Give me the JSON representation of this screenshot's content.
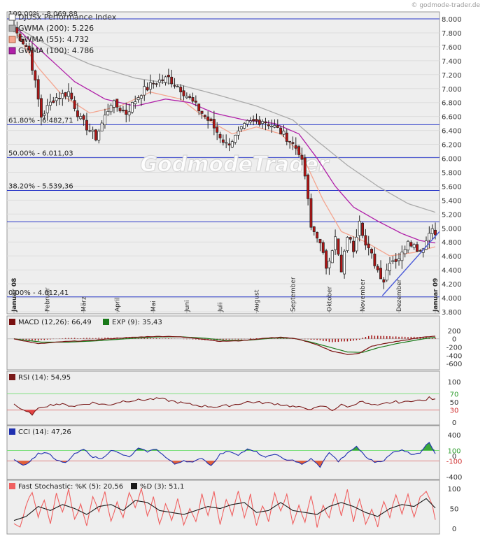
{
  "watermark": "© godmode-trader.de",
  "logo_text": "GodmodeTrader",
  "chart_data": [
    {
      "type": "candlestick",
      "title": "DJUSx Performance Index",
      "top_label": "100.00% - 8.069,88",
      "ylim": [
        4.0,
        8.0
      ],
      "yticks": [
        "3.800",
        "4.000",
        "4.200",
        "4.400",
        "4.600",
        "4.800",
        "5.000",
        "5.200",
        "5.400",
        "5.600",
        "5.800",
        "6.000",
        "6.200",
        "6.400",
        "6.600",
        "6.800",
        "7.000",
        "7.200",
        "7.400",
        "7.600",
        "7.800",
        "8.000"
      ],
      "months": [
        "Januar 08",
        "Februar",
        "März",
        "April",
        "Mai",
        "Juni",
        "Juli",
        "August",
        "September",
        "Oktober",
        "November",
        "Dezember",
        "Januar 09"
      ],
      "legend": [
        {
          "label": "GWMA (200): 5.226",
          "color": "#aaaaaa"
        },
        {
          "label": "GWMA (55): 4.732",
          "color": "#f4a58f"
        },
        {
          "label": "GWMA (100): 4.786",
          "color": "#b01fa8"
        }
      ],
      "fibonacci": [
        {
          "label": "61.80% - 6.482,71",
          "value": 6.48271
        },
        {
          "label": "50.00% - 6.011,03",
          "value": 6.01103
        },
        {
          "label": "38.20% - 5.539,36",
          "value": 5.53936
        },
        {
          "label": "0.00% - 4.012,41",
          "value": 4.01241
        }
      ],
      "extra_levels": [
        8.0,
        5.09
      ],
      "close_keypoints": [
        [
          0,
          7.85
        ],
        [
          5,
          7.55
        ],
        [
          9,
          6.6
        ],
        [
          13,
          6.85
        ],
        [
          18,
          6.95
        ],
        [
          22,
          6.55
        ],
        [
          27,
          6.3
        ],
        [
          32,
          6.8
        ],
        [
          37,
          6.65
        ],
        [
          42,
          6.95
        ],
        [
          47,
          7.1
        ],
        [
          51,
          7.15
        ],
        [
          55,
          7.0
        ],
        [
          60,
          6.75
        ],
        [
          65,
          6.5
        ],
        [
          70,
          6.2
        ],
        [
          73,
          6.3
        ],
        [
          77,
          6.5
        ],
        [
          82,
          6.55
        ],
        [
          86,
          6.45
        ],
        [
          90,
          6.3
        ],
        [
          94,
          6.1
        ],
        [
          96,
          5.75
        ],
        [
          98,
          5.0
        ],
        [
          100,
          4.9
        ],
        [
          103,
          4.45
        ],
        [
          106,
          4.85
        ],
        [
          108,
          4.35
        ],
        [
          110,
          4.9
        ],
        [
          112,
          4.7
        ],
        [
          114,
          5.15
        ],
        [
          116,
          4.75
        ],
        [
          118,
          4.6
        ],
        [
          120,
          4.4
        ],
        [
          122,
          4.25
        ],
        [
          124,
          4.55
        ],
        [
          126,
          4.55
        ],
        [
          128,
          4.62
        ],
        [
          130,
          4.85
        ],
        [
          132,
          4.75
        ],
        [
          134,
          4.68
        ],
        [
          136,
          4.82
        ],
        [
          138,
          5.05
        ],
        [
          139,
          4.87
        ]
      ],
      "gwma200_keypoints": [
        [
          0,
          7.9
        ],
        [
          12,
          7.6
        ],
        [
          25,
          7.35
        ],
        [
          40,
          7.15
        ],
        [
          55,
          7.05
        ],
        [
          68,
          6.9
        ],
        [
          80,
          6.75
        ],
        [
          92,
          6.55
        ],
        [
          100,
          6.25
        ],
        [
          110,
          5.9
        ],
        [
          120,
          5.6
        ],
        [
          130,
          5.35
        ],
        [
          139,
          5.226
        ]
      ],
      "gwma55_keypoints": [
        [
          0,
          7.85
        ],
        [
          8,
          7.3
        ],
        [
          16,
          6.9
        ],
        [
          25,
          6.65
        ],
        [
          35,
          6.75
        ],
        [
          45,
          6.95
        ],
        [
          55,
          6.85
        ],
        [
          64,
          6.55
        ],
        [
          72,
          6.35
        ],
        [
          80,
          6.45
        ],
        [
          88,
          6.35
        ],
        [
          95,
          6.05
        ],
        [
          102,
          5.4
        ],
        [
          108,
          4.95
        ],
        [
          116,
          4.8
        ],
        [
          124,
          4.6
        ],
        [
          132,
          4.65
        ],
        [
          139,
          4.732
        ]
      ],
      "gwma100_keypoints": [
        [
          0,
          7.9
        ],
        [
          10,
          7.5
        ],
        [
          20,
          7.1
        ],
        [
          30,
          6.85
        ],
        [
          40,
          6.75
        ],
        [
          50,
          6.85
        ],
        [
          58,
          6.8
        ],
        [
          66,
          6.65
        ],
        [
          76,
          6.55
        ],
        [
          86,
          6.5
        ],
        [
          94,
          6.35
        ],
        [
          100,
          6.0
        ],
        [
          106,
          5.6
        ],
        [
          112,
          5.3
        ],
        [
          120,
          5.1
        ],
        [
          128,
          4.92
        ],
        [
          134,
          4.82
        ],
        [
          139,
          4.786
        ]
      ],
      "trendline": [
        [
          122,
          4.03
        ],
        [
          139,
          5.02
        ]
      ]
    },
    {
      "type": "line",
      "title": "MACD (12,26): 66,49",
      "title2": "EXP (9): 35,43",
      "colors": {
        "macd": "#7a1010",
        "exp": "#1a7a1a",
        "hist": "#a31515"
      },
      "yticks": [
        "200",
        "0",
        "-200",
        "-400",
        "-600"
      ],
      "ylim": [
        -700,
        250
      ],
      "macd_keypoints": [
        [
          0,
          0
        ],
        [
          8,
          -120
        ],
        [
          16,
          -70
        ],
        [
          25,
          -40
        ],
        [
          35,
          20
        ],
        [
          45,
          55
        ],
        [
          52,
          60
        ],
        [
          60,
          15
        ],
        [
          68,
          -60
        ],
        [
          74,
          -50
        ],
        [
          82,
          10
        ],
        [
          88,
          40
        ],
        [
          94,
          -10
        ],
        [
          100,
          -150
        ],
        [
          105,
          -300
        ],
        [
          110,
          -380
        ],
        [
          114,
          -350
        ],
        [
          118,
          -180
        ],
        [
          124,
          -90
        ],
        [
          130,
          -20
        ],
        [
          135,
          40
        ],
        [
          139,
          66.49
        ]
      ],
      "exp_keypoints": [
        [
          0,
          0
        ],
        [
          9,
          -80
        ],
        [
          18,
          -80
        ],
        [
          27,
          -50
        ],
        [
          37,
          0
        ],
        [
          47,
          45
        ],
        [
          55,
          50
        ],
        [
          63,
          15
        ],
        [
          70,
          -40
        ],
        [
          78,
          -30
        ],
        [
          86,
          20
        ],
        [
          92,
          15
        ],
        [
          98,
          -80
        ],
        [
          104,
          -200
        ],
        [
          110,
          -320
        ],
        [
          115,
          -330
        ],
        [
          120,
          -220
        ],
        [
          126,
          -120
        ],
        [
          132,
          -40
        ],
        [
          136,
          10
        ],
        [
          139,
          35.43
        ]
      ]
    },
    {
      "type": "line",
      "title": "RSI (14): 54,95",
      "color": "#7a1a1a",
      "yticks": [
        "100",
        "70",
        "50",
        "30",
        "0"
      ],
      "ylim": [
        0,
        100
      ],
      "bands": [
        70,
        30
      ],
      "keypoints": [
        [
          0,
          45
        ],
        [
          3,
          28
        ],
        [
          6,
          20
        ],
        [
          9,
          38
        ],
        [
          14,
          45
        ],
        [
          20,
          40
        ],
        [
          26,
          48
        ],
        [
          31,
          42
        ],
        [
          36,
          52
        ],
        [
          42,
          55
        ],
        [
          48,
          58
        ],
        [
          52,
          52
        ],
        [
          57,
          45
        ],
        [
          62,
          40
        ],
        [
          67,
          38
        ],
        [
          72,
          42
        ],
        [
          77,
          50
        ],
        [
          82,
          48
        ],
        [
          87,
          45
        ],
        [
          91,
          40
        ],
        [
          95,
          35
        ],
        [
          99,
          33
        ],
        [
          102,
          40
        ],
        [
          105,
          30
        ],
        [
          108,
          42
        ],
        [
          111,
          38
        ],
        [
          114,
          52
        ],
        [
          117,
          44
        ],
        [
          120,
          40
        ],
        [
          123,
          47
        ],
        [
          126,
          50
        ],
        [
          129,
          49
        ],
        [
          132,
          55
        ],
        [
          135,
          52
        ],
        [
          137,
          60
        ],
        [
          139,
          54.95
        ]
      ]
    },
    {
      "type": "line",
      "title": "CCI (14): 47,26",
      "color": "#1e2fb0",
      "yticks": [
        "400",
        "100",
        "0",
        "-100",
        "-400"
      ],
      "ylim": [
        -400,
        400
      ],
      "bands": [
        100,
        -100
      ],
      "keypoints": [
        [
          0,
          -60
        ],
        [
          3,
          -180
        ],
        [
          5,
          -120
        ],
        [
          8,
          40
        ],
        [
          11,
          60
        ],
        [
          14,
          -90
        ],
        [
          17,
          -140
        ],
        [
          20,
          30
        ],
        [
          23,
          120
        ],
        [
          26,
          -20
        ],
        [
          29,
          -60
        ],
        [
          32,
          110
        ],
        [
          35,
          40
        ],
        [
          38,
          -30
        ],
        [
          41,
          140
        ],
        [
          44,
          80
        ],
        [
          47,
          130
        ],
        [
          50,
          -30
        ],
        [
          53,
          -160
        ],
        [
          56,
          -90
        ],
        [
          59,
          -130
        ],
        [
          62,
          -40
        ],
        [
          65,
          -190
        ],
        [
          68,
          30
        ],
        [
          71,
          90
        ],
        [
          74,
          20
        ],
        [
          77,
          120
        ],
        [
          80,
          70
        ],
        [
          83,
          -40
        ],
        [
          86,
          40
        ],
        [
          89,
          -70
        ],
        [
          92,
          -80
        ],
        [
          95,
          -170
        ],
        [
          98,
          -60
        ],
        [
          101,
          -210
        ],
        [
          104,
          70
        ],
        [
          107,
          -110
        ],
        [
          110,
          40
        ],
        [
          113,
          180
        ],
        [
          116,
          -20
        ],
        [
          119,
          -120
        ],
        [
          122,
          -90
        ],
        [
          125,
          60
        ],
        [
          128,
          120
        ],
        [
          131,
          30
        ],
        [
          134,
          60
        ],
        [
          137,
          260
        ],
        [
          139,
          47.26
        ]
      ]
    },
    {
      "type": "line",
      "title": "Fast Stochastic: %K (5): 20,56",
      "title2": "%D (3): 51,1",
      "colors": {
        "k": "#f06060",
        "d": "#1a1a1a"
      },
      "yticks": [
        "100",
        "50",
        "0"
      ],
      "ylim": [
        0,
        100
      ],
      "bands": [
        80,
        20
      ],
      "k_keypoints": [
        [
          0,
          15
        ],
        [
          2,
          5
        ],
        [
          4,
          60
        ],
        [
          6,
          90
        ],
        [
          8,
          30
        ],
        [
          10,
          70
        ],
        [
          12,
          10
        ],
        [
          14,
          85
        ],
        [
          16,
          40
        ],
        [
          18,
          95
        ],
        [
          20,
          20
        ],
        [
          22,
          60
        ],
        [
          24,
          5
        ],
        [
          26,
          80
        ],
        [
          28,
          45
        ],
        [
          30,
          95
        ],
        [
          32,
          15
        ],
        [
          34,
          70
        ],
        [
          36,
          25
        ],
        [
          38,
          90
        ],
        [
          40,
          55
        ],
        [
          42,
          98
        ],
        [
          44,
          30
        ],
        [
          46,
          80
        ],
        [
          48,
          10
        ],
        [
          50,
          60
        ],
        [
          52,
          20
        ],
        [
          54,
          75
        ],
        [
          56,
          5
        ],
        [
          58,
          50
        ],
        [
          60,
          15
        ],
        [
          62,
          85
        ],
        [
          64,
          30
        ],
        [
          66,
          90
        ],
        [
          68,
          10
        ],
        [
          70,
          70
        ],
        [
          72,
          35
        ],
        [
          74,
          95
        ],
        [
          76,
          25
        ],
        [
          78,
          85
        ],
        [
          80,
          5
        ],
        [
          82,
          60
        ],
        [
          84,
          20
        ],
        [
          86,
          92
        ],
        [
          88,
          40
        ],
        [
          90,
          85
        ],
        [
          92,
          10
        ],
        [
          94,
          55
        ],
        [
          96,
          15
        ],
        [
          98,
          80
        ],
        [
          100,
          5
        ],
        [
          102,
          60
        ],
        [
          104,
          25
        ],
        [
          106,
          90
        ],
        [
          108,
          35
        ],
        [
          110,
          95
        ],
        [
          112,
          20
        ],
        [
          114,
          75
        ],
        [
          116,
          10
        ],
        [
          118,
          50
        ],
        [
          120,
          5
        ],
        [
          122,
          70
        ],
        [
          124,
          30
        ],
        [
          126,
          85
        ],
        [
          128,
          40
        ],
        [
          130,
          90
        ],
        [
          132,
          25
        ],
        [
          134,
          80
        ],
        [
          136,
          95
        ],
        [
          138,
          60
        ],
        [
          139,
          20.56
        ]
      ],
      "d_keypoints": [
        [
          0,
          20
        ],
        [
          4,
          30
        ],
        [
          8,
          55
        ],
        [
          12,
          45
        ],
        [
          16,
          60
        ],
        [
          20,
          50
        ],
        [
          24,
          35
        ],
        [
          28,
          55
        ],
        [
          32,
          60
        ],
        [
          36,
          45
        ],
        [
          40,
          70
        ],
        [
          44,
          65
        ],
        [
          48,
          45
        ],
        [
          52,
          40
        ],
        [
          56,
          35
        ],
        [
          60,
          45
        ],
        [
          64,
          55
        ],
        [
          68,
          50
        ],
        [
          72,
          60
        ],
        [
          76,
          65
        ],
        [
          80,
          40
        ],
        [
          84,
          45
        ],
        [
          88,
          65
        ],
        [
          92,
          45
        ],
        [
          96,
          40
        ],
        [
          100,
          35
        ],
        [
          104,
          55
        ],
        [
          108,
          65
        ],
        [
          112,
          55
        ],
        [
          116,
          40
        ],
        [
          120,
          30
        ],
        [
          124,
          50
        ],
        [
          128,
          60
        ],
        [
          132,
          55
        ],
        [
          136,
          75
        ],
        [
          139,
          51.1
        ]
      ]
    }
  ]
}
